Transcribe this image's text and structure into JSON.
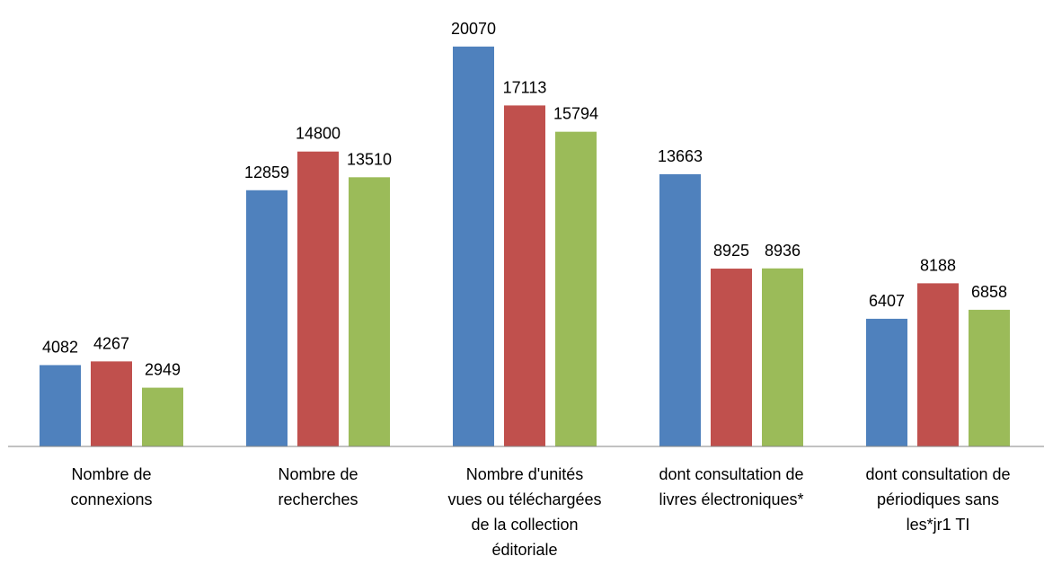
{
  "chart_data": {
    "type": "bar",
    "categories": [
      "Nombre de\nconnexions",
      "Nombre de\nrecherches",
      "Nombre d'unités\nvues ou téléchargées\nde la collection\néditoriale",
      "dont consultation de\nlivres électroniques*",
      "dont consultation de\npériodiques sans\nles*jr1 TI"
    ],
    "series": [
      {
        "color": "#4f81bd",
        "values": [
          4082,
          12859,
          20070,
          13663,
          6407
        ]
      },
      {
        "color": "#c0504d",
        "values": [
          4267,
          14800,
          17113,
          8925,
          8188
        ]
      },
      {
        "color": "#9bbb59",
        "values": [
          2949,
          13510,
          15794,
          8936,
          6858
        ]
      }
    ],
    "ylim": [
      0,
      22000
    ]
  }
}
